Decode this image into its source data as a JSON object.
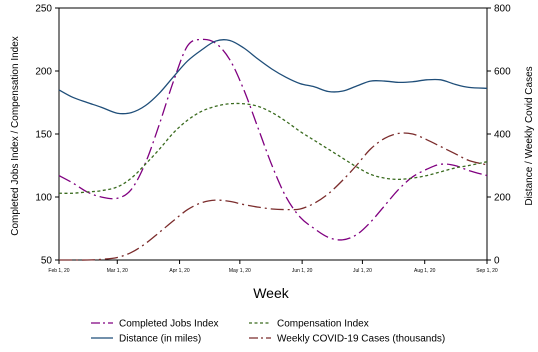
{
  "chart_data": {
    "type": "line",
    "xlabel": "Week",
    "ylabel_left": "Completed Jobs Index / Compensation Index",
    "ylabel_right": "Distance / Weekly Covid Cases",
    "x_date_range": [
      "2020-02-01",
      "2020-09-01"
    ],
    "x_ticks": [
      {
        "date": "2020-02-01",
        "label": "Feb 1, 20"
      },
      {
        "date": "2020-03-01",
        "label": "Mar 1, 20"
      },
      {
        "date": "2020-04-01",
        "label": "Apr 1, 20"
      },
      {
        "date": "2020-05-01",
        "label": "May 1, 20"
      },
      {
        "date": "2020-06-01",
        "label": "Jun 1, 20"
      },
      {
        "date": "2020-07-01",
        "label": "Jul 1, 20"
      },
      {
        "date": "2020-08-01",
        "label": "Aug 1, 20"
      },
      {
        "date": "2020-09-01",
        "label": "Sep 1, 20"
      }
    ],
    "ylim_left": [
      50,
      250
    ],
    "yticks_left": [
      50,
      100,
      150,
      200,
      250
    ],
    "ylim_right": [
      0,
      800
    ],
    "yticks_right": [
      0,
      200,
      400,
      600,
      800
    ],
    "grid": false,
    "legend_position": "bottom",
    "series": [
      {
        "name": "Completed Jobs Index",
        "axis": "left",
        "color": "#800080",
        "dash": "longdash-dot",
        "points": [
          [
            "2020-02-01",
            117
          ],
          [
            "2020-02-08",
            111
          ],
          [
            "2020-02-15",
            104
          ],
          [
            "2020-02-22",
            100
          ],
          [
            "2020-03-01",
            99
          ],
          [
            "2020-03-08",
            106
          ],
          [
            "2020-03-15",
            127
          ],
          [
            "2020-03-22",
            158
          ],
          [
            "2020-03-29",
            192
          ],
          [
            "2020-04-05",
            220
          ],
          [
            "2020-04-12",
            225
          ],
          [
            "2020-04-19",
            222
          ],
          [
            "2020-04-26",
            209
          ],
          [
            "2020-05-03",
            185
          ],
          [
            "2020-05-10",
            155
          ],
          [
            "2020-05-17",
            125
          ],
          [
            "2020-05-24",
            100
          ],
          [
            "2020-05-31",
            84
          ],
          [
            "2020-06-07",
            75
          ],
          [
            "2020-06-14",
            68
          ],
          [
            "2020-06-21",
            66
          ],
          [
            "2020-06-28",
            70
          ],
          [
            "2020-07-05",
            80
          ],
          [
            "2020-07-12",
            93
          ],
          [
            "2020-07-19",
            106
          ],
          [
            "2020-07-26",
            116
          ],
          [
            "2020-08-02",
            122
          ],
          [
            "2020-08-09",
            126
          ],
          [
            "2020-08-16",
            125
          ],
          [
            "2020-08-23",
            121
          ],
          [
            "2020-09-01",
            117
          ]
        ]
      },
      {
        "name": "Compensation Index",
        "axis": "left",
        "color": "#3a6b1f",
        "dash": "short",
        "points": [
          [
            "2020-02-01",
            103
          ],
          [
            "2020-02-08",
            103
          ],
          [
            "2020-02-15",
            104
          ],
          [
            "2020-02-22",
            105
          ],
          [
            "2020-03-01",
            108
          ],
          [
            "2020-03-08",
            115
          ],
          [
            "2020-03-15",
            126
          ],
          [
            "2020-03-22",
            138
          ],
          [
            "2020-03-29",
            151
          ],
          [
            "2020-04-05",
            161
          ],
          [
            "2020-04-12",
            168
          ],
          [
            "2020-04-19",
            172
          ],
          [
            "2020-04-26",
            174
          ],
          [
            "2020-05-03",
            174
          ],
          [
            "2020-05-10",
            172
          ],
          [
            "2020-05-17",
            167
          ],
          [
            "2020-05-24",
            160
          ],
          [
            "2020-05-31",
            152
          ],
          [
            "2020-06-07",
            145
          ],
          [
            "2020-06-14",
            138
          ],
          [
            "2020-06-21",
            131
          ],
          [
            "2020-06-28",
            124
          ],
          [
            "2020-07-05",
            118
          ],
          [
            "2020-07-12",
            115
          ],
          [
            "2020-07-19",
            114
          ],
          [
            "2020-07-26",
            115
          ],
          [
            "2020-08-02",
            117
          ],
          [
            "2020-08-09",
            120
          ],
          [
            "2020-08-16",
            123
          ],
          [
            "2020-08-23",
            125
          ],
          [
            "2020-09-01",
            128
          ]
        ]
      },
      {
        "name": "Distance (in miles)",
        "axis": "right",
        "color": "#1f4e79",
        "dash": "solid",
        "points": [
          [
            "2020-02-01",
            540
          ],
          [
            "2020-02-08",
            516
          ],
          [
            "2020-02-15",
            500
          ],
          [
            "2020-02-22",
            485
          ],
          [
            "2020-03-01",
            466
          ],
          [
            "2020-03-08",
            468
          ],
          [
            "2020-03-15",
            490
          ],
          [
            "2020-03-22",
            530
          ],
          [
            "2020-03-29",
            582
          ],
          [
            "2020-04-05",
            632
          ],
          [
            "2020-04-12",
            667
          ],
          [
            "2020-04-19",
            695
          ],
          [
            "2020-04-26",
            697
          ],
          [
            "2020-05-03",
            673
          ],
          [
            "2020-05-10",
            638
          ],
          [
            "2020-05-17",
            606
          ],
          [
            "2020-05-24",
            580
          ],
          [
            "2020-05-31",
            560
          ],
          [
            "2020-06-07",
            550
          ],
          [
            "2020-06-14",
            535
          ],
          [
            "2020-06-21",
            536
          ],
          [
            "2020-06-28",
            552
          ],
          [
            "2020-07-05",
            568
          ],
          [
            "2020-07-12",
            568
          ],
          [
            "2020-07-19",
            564
          ],
          [
            "2020-07-26",
            566
          ],
          [
            "2020-08-02",
            572
          ],
          [
            "2020-08-09",
            572
          ],
          [
            "2020-08-16",
            558
          ],
          [
            "2020-08-23",
            548
          ],
          [
            "2020-09-01",
            545
          ]
        ]
      },
      {
        "name": "Weekly COVID-19 Cases (thousands)",
        "axis": "right",
        "color": "#7b2c2c",
        "dash": "longdash-dot",
        "points": [
          [
            "2020-02-01",
            0
          ],
          [
            "2020-02-08",
            0
          ],
          [
            "2020-02-15",
            0
          ],
          [
            "2020-02-22",
            2
          ],
          [
            "2020-03-01",
            8
          ],
          [
            "2020-03-08",
            24
          ],
          [
            "2020-03-15",
            52
          ],
          [
            "2020-03-22",
            88
          ],
          [
            "2020-03-29",
            125
          ],
          [
            "2020-04-05",
            160
          ],
          [
            "2020-04-12",
            182
          ],
          [
            "2020-04-19",
            190
          ],
          [
            "2020-04-26",
            186
          ],
          [
            "2020-05-03",
            176
          ],
          [
            "2020-05-10",
            168
          ],
          [
            "2020-05-17",
            162
          ],
          [
            "2020-05-24",
            160
          ],
          [
            "2020-05-31",
            162
          ],
          [
            "2020-06-07",
            180
          ],
          [
            "2020-06-14",
            210
          ],
          [
            "2020-06-21",
            252
          ],
          [
            "2020-06-28",
            300
          ],
          [
            "2020-07-05",
            352
          ],
          [
            "2020-07-12",
            386
          ],
          [
            "2020-07-19",
            402
          ],
          [
            "2020-07-26",
            400
          ],
          [
            "2020-08-02",
            382
          ],
          [
            "2020-08-09",
            360
          ],
          [
            "2020-08-16",
            338
          ],
          [
            "2020-08-23",
            316
          ],
          [
            "2020-09-01",
            302
          ]
        ]
      }
    ]
  }
}
